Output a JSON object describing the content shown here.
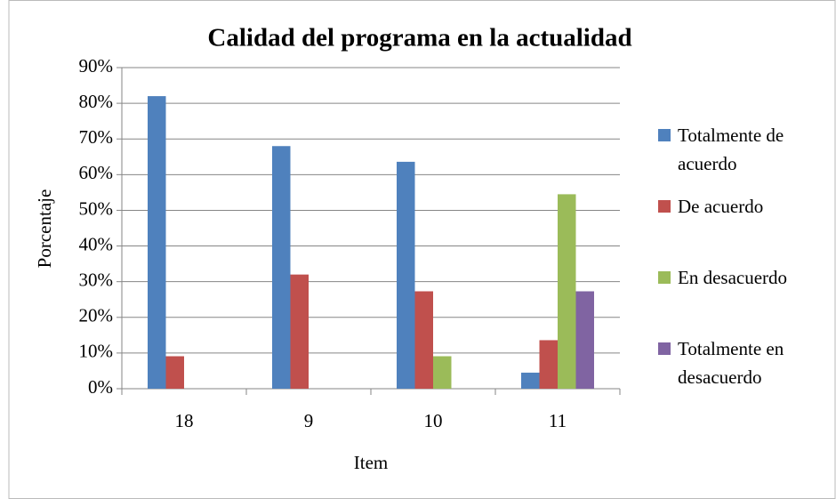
{
  "chart_data": {
    "type": "bar",
    "title": "Calidad del programa en la actualidad",
    "x_label": "Item",
    "y_label": "Porcentaje",
    "categories": [
      "18",
      "9",
      "10",
      "11"
    ],
    "series": [
      {
        "name": "Totalmente de acuerdo",
        "color": "#4f81bd",
        "values": [
          82,
          68,
          63.6,
          4.5
        ]
      },
      {
        "name": "De acuerdo",
        "color": "#c0504d",
        "values": [
          9.1,
          32,
          27.3,
          13.6
        ]
      },
      {
        "name": "En desacuerdo",
        "color": "#9bbb59",
        "values": [
          0,
          0,
          9.1,
          54.5
        ]
      },
      {
        "name": "Totalmente en desacuerdo",
        "color": "#8064a2",
        "values": [
          0,
          0,
          0,
          27.3
        ]
      }
    ],
    "ylim": [
      0,
      90
    ],
    "yticks": [
      {
        "value": 0,
        "label": "0%"
      },
      {
        "value": 10,
        "label": "10%"
      },
      {
        "value": 20,
        "label": "20%"
      },
      {
        "value": 30,
        "label": "30%"
      },
      {
        "value": 40,
        "label": "40%"
      },
      {
        "value": 50,
        "label": "50%"
      },
      {
        "value": 60,
        "label": "60%"
      },
      {
        "value": 70,
        "label": "70%"
      },
      {
        "value": 80,
        "label": "80%"
      },
      {
        "value": 90,
        "label": "90%"
      }
    ],
    "grid": true,
    "legend": "right"
  }
}
